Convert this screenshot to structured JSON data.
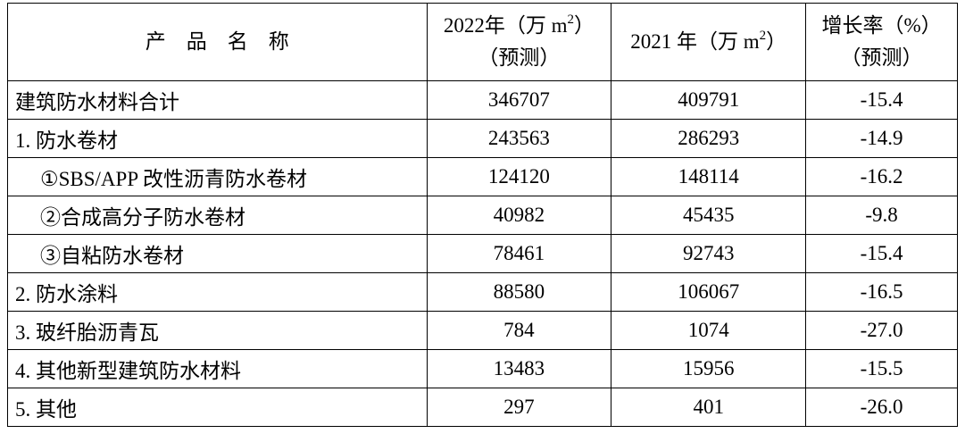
{
  "header": {
    "name": "产　品　名　称",
    "col2022": [
      "2022年（万 m",
      "2",
      "）",
      "（预测）"
    ],
    "col2021": [
      "2021 年（万 m",
      "2",
      "）"
    ],
    "growth": [
      "增长率（%）",
      "（预测）"
    ]
  },
  "table": {
    "rows": [
      [
        "建筑防水材料合计",
        "346707",
        "409791",
        "-15.4"
      ],
      [
        "1. 防水卷材",
        "243563",
        "286293",
        "-14.9"
      ],
      [
        "①SBS/APP 改性沥青防水卷材",
        "124120",
        "148114",
        "-16.2"
      ],
      [
        "②合成高分子防水卷材",
        "40982",
        "45435",
        "-9.8"
      ],
      [
        "③自粘防水卷材",
        "78461",
        "92743",
        "-15.4"
      ],
      [
        "2. 防水涂料",
        "88580",
        "106067",
        "-16.5"
      ],
      [
        "3. 玻纤胎沥青瓦",
        "784",
        "1074",
        "-27.0"
      ],
      [
        "4. 其他新型建筑防水材料",
        "13483",
        "15956",
        "-15.5"
      ],
      [
        "5. 其他",
        "297",
        "401",
        "-26.0"
      ]
    ]
  }
}
